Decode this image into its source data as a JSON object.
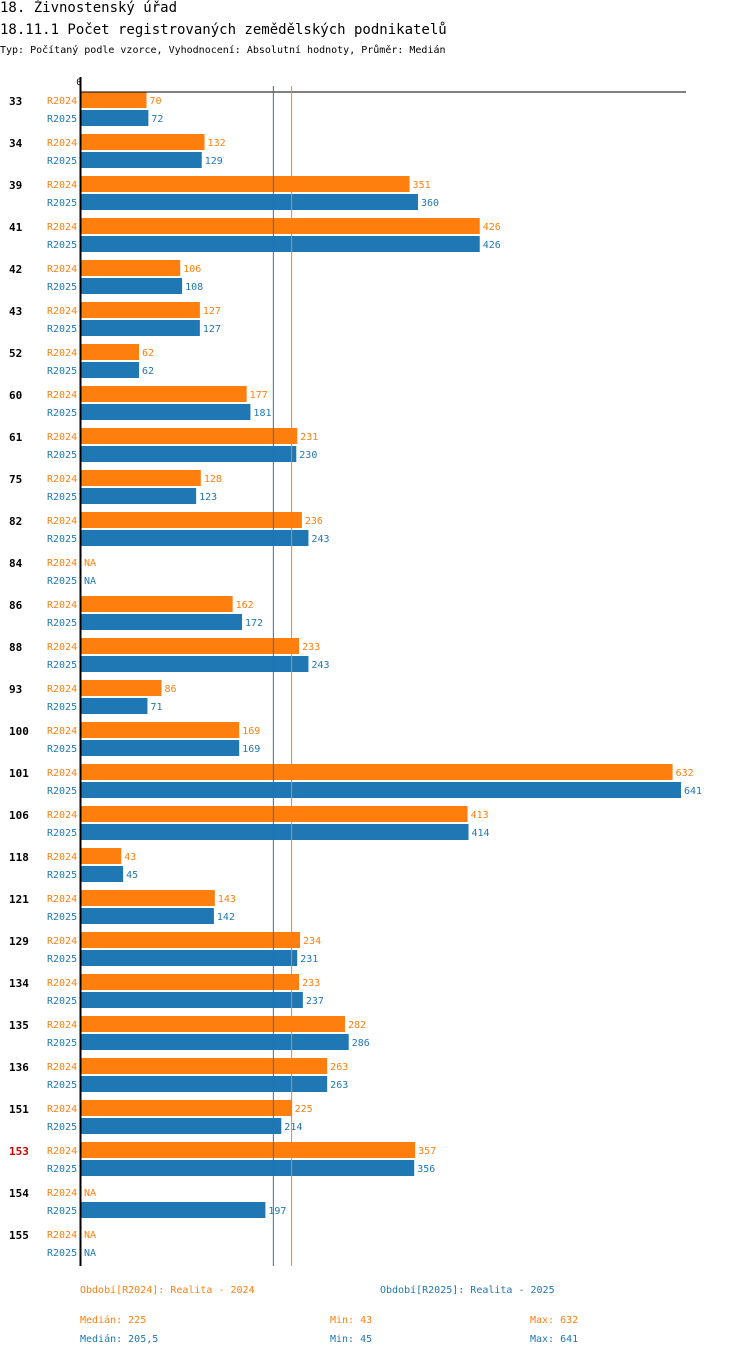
{
  "header": {
    "title": "18. Živnostenský úřad",
    "subtitle": "18.11.1 Počet registrovaných zemědělských podnikatelů",
    "type_line": "Typ: Počítaný podle vzorce, Vyhodnocení: Absolutní hodnoty, Průměr: Medián"
  },
  "colors": {
    "r2024": "#ff7f0e",
    "r2025": "#1f77b4",
    "highlight": "#cc0000"
  },
  "chart_data": {
    "type": "bar",
    "orientation": "horizontal",
    "axis_zero_label": "0",
    "xlim": [
      0,
      641
    ],
    "highlight_category": "153",
    "categories": [
      "33",
      "34",
      "39",
      "41",
      "42",
      "43",
      "52",
      "60",
      "61",
      "75",
      "82",
      "84",
      "86",
      "88",
      "93",
      "100",
      "101",
      "106",
      "118",
      "121",
      "129",
      "134",
      "135",
      "136",
      "151",
      "153",
      "154",
      "155"
    ],
    "series": [
      {
        "name": "R2024",
        "values": [
          70,
          132,
          351,
          426,
          106,
          127,
          62,
          177,
          231,
          128,
          236,
          null,
          162,
          233,
          86,
          169,
          632,
          413,
          43,
          143,
          234,
          233,
          282,
          263,
          225,
          357,
          null,
          null
        ]
      },
      {
        "name": "R2025",
        "values": [
          72,
          129,
          360,
          426,
          108,
          127,
          62,
          181,
          230,
          123,
          243,
          null,
          172,
          243,
          71,
          169,
          641,
          414,
          45,
          142,
          231,
          237,
          286,
          263,
          214,
          356,
          197,
          null
        ]
      }
    ],
    "na_label": "NA",
    "medians": {
      "R2024": 225,
      "R2025": 205.5
    }
  },
  "legend": {
    "period_2024": "Období[R2024]: Realita - 2024",
    "period_2025": "Období[R2025]: Realita - 2025",
    "median_2024": "Medián: 225",
    "min_2024": "Min: 43",
    "max_2024": "Max: 632",
    "median_2025": "Medián: 205,5",
    "min_2025": "Min: 45",
    "max_2025": "Max: 641"
  }
}
